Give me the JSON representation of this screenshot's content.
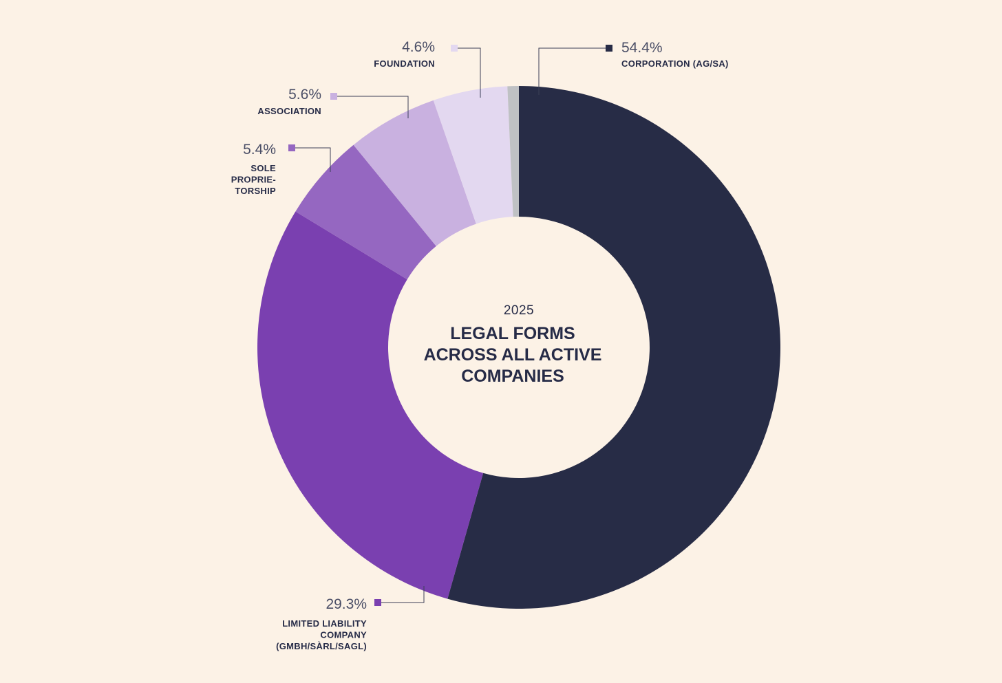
{
  "chart_data": {
    "type": "pie",
    "center_year": "2025",
    "title_lines": [
      "LEGAL FORMS",
      "ACROSS ALL ACTIVE",
      "COMPANIES"
    ],
    "slices": [
      {
        "value_label": "54.4%",
        "value": 54.4,
        "label_lines": [
          "CORPORATION (AG/SA)"
        ],
        "color": "#272c46"
      },
      {
        "value_label": "29.3%",
        "value": 29.3,
        "label_lines": [
          "LIMITED LIABILITY",
          "COMPANY",
          "(GMBH/SÀRL/SAGL)"
        ],
        "color": "#7a40b0"
      },
      {
        "value_label": "5.4%",
        "value": 5.4,
        "label_lines": [
          "SOLE",
          "PROPRIE-",
          "TORSHIP"
        ],
        "color": "#9567c1"
      },
      {
        "value_label": "5.6%",
        "value": 5.6,
        "label_lines": [
          "ASSOCIATION"
        ],
        "color": "#c9b1e0"
      },
      {
        "value_label": "4.6%",
        "value": 4.6,
        "label_lines": [
          "FOUNDATION"
        ],
        "color": "#e3d8f0"
      },
      {
        "value": 0.7,
        "color": "#bfc1c4"
      }
    ]
  }
}
